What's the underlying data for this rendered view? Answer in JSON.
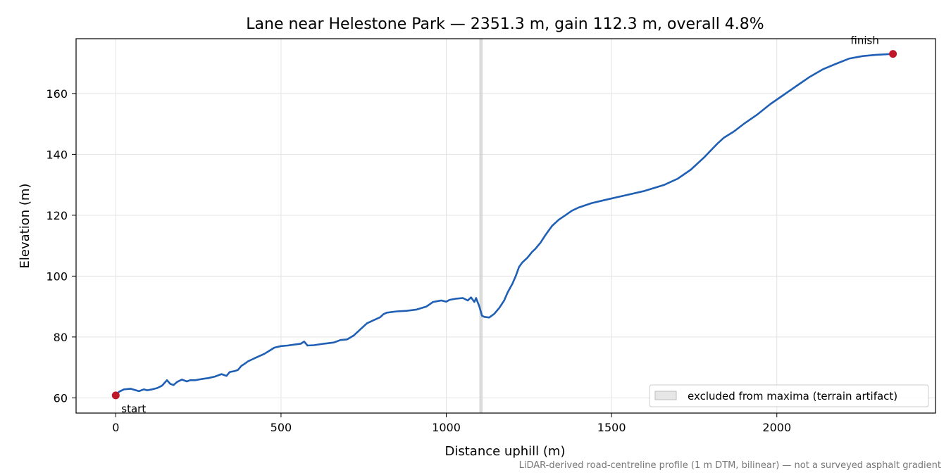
{
  "chart_data": {
    "type": "line",
    "title": "Lane near Helestone Park — 2351.3 m, gain 112.3 m, overall 4.8%",
    "xlabel": "Distance uphill (m)",
    "ylabel": "Elevation (m)",
    "xlim": [
      -120,
      2480
    ],
    "ylim": [
      55,
      178
    ],
    "x_ticks": [
      0,
      500,
      1000,
      1500,
      2000
    ],
    "y_ticks": [
      60,
      80,
      100,
      120,
      140,
      160
    ],
    "grid": true,
    "legend_position": "lower-right",
    "series": [
      {
        "color": "#1f5fb4",
        "x": [
          0,
          10,
          25,
          45,
          70,
          85,
          95,
          110,
          125,
          140,
          155,
          165,
          175,
          185,
          200,
          215,
          225,
          240,
          260,
          280,
          300,
          320,
          335,
          345,
          360,
          370,
          380,
          390,
          400,
          420,
          450,
          480,
          500,
          520,
          540,
          560,
          570,
          580,
          600,
          630,
          660,
          680,
          700,
          720,
          740,
          760,
          780,
          800,
          810,
          820,
          850,
          880,
          910,
          940,
          960,
          975,
          985,
          1000,
          1010,
          1030,
          1050,
          1065,
          1075,
          1085,
          1090,
          1100,
          1108,
          1115,
          1130,
          1145,
          1160,
          1175,
          1185,
          1195,
          1200,
          1210,
          1220,
          1230,
          1245,
          1260,
          1270,
          1285,
          1300,
          1320,
          1340,
          1360,
          1380,
          1400,
          1440,
          1480,
          1520,
          1560,
          1600,
          1660,
          1700,
          1740,
          1780,
          1820,
          1840,
          1870,
          1900,
          1940,
          1980,
          2020,
          2060,
          2100,
          2140,
          2180,
          2220,
          2260,
          2300,
          2351.3
        ],
        "y": [
          60.8,
          62.0,
          62.8,
          63.0,
          62.2,
          62.8,
          62.5,
          62.8,
          63.2,
          64.0,
          65.8,
          64.6,
          64.2,
          65.2,
          66.0,
          65.4,
          65.8,
          65.8,
          66.2,
          66.5,
          67.0,
          67.8,
          67.2,
          68.5,
          68.8,
          69.2,
          70.5,
          71.2,
          72.0,
          73.0,
          74.5,
          76.5,
          77.0,
          77.2,
          77.5,
          77.8,
          78.5,
          77.2,
          77.3,
          77.8,
          78.2,
          79.0,
          79.2,
          80.5,
          82.5,
          84.5,
          85.5,
          86.5,
          87.5,
          88.0,
          88.4,
          88.6,
          89.0,
          90.0,
          91.5,
          91.8,
          92.0,
          91.6,
          92.2,
          92.6,
          92.8,
          92.0,
          93.0,
          91.5,
          92.8,
          90.0,
          87.0,
          86.6,
          86.4,
          87.6,
          89.5,
          92.0,
          94.5,
          96.5,
          97.5,
          100.0,
          103.0,
          104.5,
          106.0,
          108.0,
          109.0,
          111.0,
          113.5,
          116.5,
          118.5,
          120.0,
          121.5,
          122.5,
          124.0,
          125.0,
          126.0,
          127.0,
          128.0,
          130.0,
          132.0,
          135.0,
          139.0,
          143.5,
          145.5,
          147.5,
          150.0,
          153.0,
          156.5,
          159.5,
          162.5,
          165.5,
          168.0,
          169.8,
          171.5,
          172.3,
          172.7,
          173.0
        ]
      }
    ],
    "annotations": {
      "start": {
        "label": "start",
        "x": 0,
        "y": 60.8,
        "color": "#c0182a"
      },
      "finish": {
        "label": "finish",
        "x": 2351.3,
        "y": 173.0,
        "color": "#c0182a"
      }
    },
    "excluded_band": {
      "x_range": [
        1100,
        1110
      ],
      "label": "excluded from maxima (terrain artifact)",
      "color": "#cfcfcf"
    },
    "footnote": "LiDAR-derived road-centreline profile (1 m DTM, bilinear) — not a surveyed asphalt gradient"
  }
}
